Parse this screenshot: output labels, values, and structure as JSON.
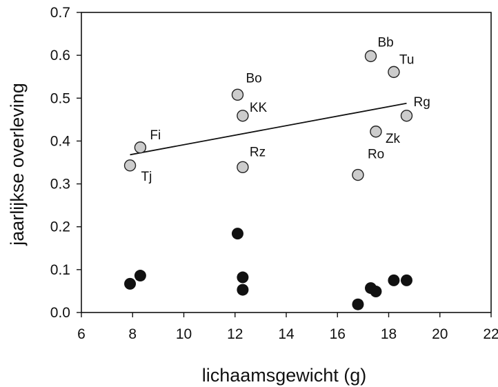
{
  "chart_data": {
    "type": "scatter",
    "title": "",
    "xlabel": "lichaamsgewicht (g)",
    "ylabel": "jaarlijkse overleving",
    "xlim": [
      6,
      22
    ],
    "ylim": [
      0.0,
      0.7
    ],
    "x_ticks": [
      "6",
      "8",
      "10",
      "12",
      "14",
      "16",
      "18",
      "20",
      "22"
    ],
    "y_ticks": [
      "0.0",
      "0.1",
      "0.2",
      "0.3",
      "0.4",
      "0.5",
      "0.6",
      "0.7"
    ],
    "grid": false,
    "series": [
      {
        "marker": "open-circle",
        "color": "#cccccc",
        "points": [
          {
            "x": 7.9,
            "y": 0.343,
            "label": "Tj"
          },
          {
            "x": 8.3,
            "y": 0.385,
            "label": "Fi"
          },
          {
            "x": 12.1,
            "y": 0.508,
            "label": "Bo"
          },
          {
            "x": 12.3,
            "y": 0.459,
            "label": "KK"
          },
          {
            "x": 12.3,
            "y": 0.339,
            "label": "Rz"
          },
          {
            "x": 16.8,
            "y": 0.321,
            "label": "Ro"
          },
          {
            "x": 17.3,
            "y": 0.598,
            "label": "Bb"
          },
          {
            "x": 17.5,
            "y": 0.422,
            "label": "Zk"
          },
          {
            "x": 18.2,
            "y": 0.561,
            "label": "Tu"
          },
          {
            "x": 18.7,
            "y": 0.459,
            "label": "Rg"
          }
        ]
      },
      {
        "marker": "filled-circle",
        "color": "#111111",
        "points": [
          {
            "x": 7.9,
            "y": 0.067
          },
          {
            "x": 8.3,
            "y": 0.086
          },
          {
            "x": 12.1,
            "y": 0.184
          },
          {
            "x": 12.3,
            "y": 0.082
          },
          {
            "x": 12.3,
            "y": 0.053
          },
          {
            "x": 16.8,
            "y": 0.019
          },
          {
            "x": 17.3,
            "y": 0.057
          },
          {
            "x": 17.5,
            "y": 0.049
          },
          {
            "x": 18.2,
            "y": 0.075
          },
          {
            "x": 18.7,
            "y": 0.075
          }
        ]
      }
    ],
    "trendline": {
      "x": [
        7.9,
        18.7
      ],
      "y": [
        0.368,
        0.488
      ]
    }
  }
}
